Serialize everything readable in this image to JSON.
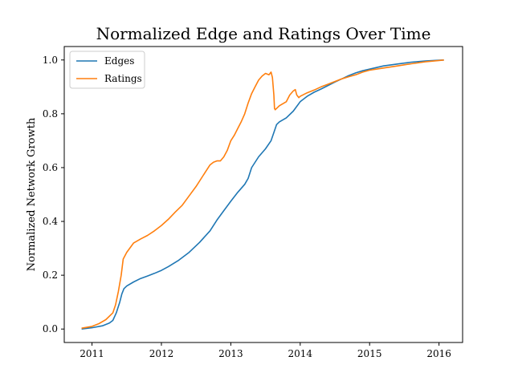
{
  "chart_data": {
    "type": "line",
    "title": "Normalized Edge and Ratings Over Time",
    "xlabel": "",
    "ylabel": "Normalized Network Growth",
    "xlim": [
      2010.6,
      2016.34
    ],
    "ylim": [
      -0.05,
      1.05
    ],
    "xticks": [
      2011,
      2012,
      2013,
      2014,
      2015,
      2016
    ],
    "yticks": [
      0.0,
      0.2,
      0.4,
      0.6,
      0.8,
      1.0
    ],
    "xtick_labels": [
      "2011",
      "2012",
      "2013",
      "2014",
      "2015",
      "2016"
    ],
    "ytick_labels": [
      "0.0",
      "0.2",
      "0.4",
      "0.6",
      "0.8",
      "1.0"
    ],
    "grid": false,
    "legend": "top-left",
    "series": [
      {
        "name": "Edges",
        "color": "#1f77b4",
        "x": [
          2010.85,
          2011.0,
          2011.15,
          2011.25,
          2011.3,
          2011.35,
          2011.4,
          2011.43,
          2011.46,
          2011.5,
          2011.6,
          2011.7,
          2011.8,
          2011.9,
          2012.0,
          2012.1,
          2012.25,
          2012.4,
          2012.55,
          2012.7,
          2012.8,
          2012.9,
          2013.0,
          2013.1,
          2013.2,
          2013.25,
          2013.3,
          2013.4,
          2013.5,
          2013.58,
          2013.62,
          2013.66,
          2013.7,
          2013.8,
          2013.9,
          2014.0,
          2014.1,
          2014.2,
          2014.3,
          2014.4,
          2014.5,
          2014.6,
          2014.7,
          2014.8,
          2014.9,
          2015.0,
          2015.2,
          2015.4,
          2015.6,
          2015.8,
          2016.0,
          2016.07
        ],
        "y": [
          0.0,
          0.005,
          0.012,
          0.022,
          0.032,
          0.06,
          0.1,
          0.13,
          0.15,
          0.16,
          0.175,
          0.188,
          0.197,
          0.207,
          0.218,
          0.232,
          0.256,
          0.285,
          0.322,
          0.365,
          0.405,
          0.44,
          0.475,
          0.508,
          0.538,
          0.56,
          0.6,
          0.64,
          0.67,
          0.7,
          0.73,
          0.76,
          0.77,
          0.785,
          0.81,
          0.845,
          0.865,
          0.88,
          0.892,
          0.905,
          0.918,
          0.93,
          0.942,
          0.952,
          0.96,
          0.966,
          0.978,
          0.985,
          0.992,
          0.996,
          0.999,
          1.0
        ]
      },
      {
        "name": "Ratings",
        "color": "#ff7f0e",
        "x": [
          2010.85,
          2011.0,
          2011.1,
          2011.2,
          2011.3,
          2011.34,
          2011.38,
          2011.42,
          2011.45,
          2011.5,
          2011.6,
          2011.7,
          2011.8,
          2011.9,
          2012.0,
          2012.1,
          2012.2,
          2012.3,
          2012.4,
          2012.5,
          2012.6,
          2012.7,
          2012.75,
          2012.8,
          2012.85,
          2012.9,
          2012.95,
          2013.0,
          2013.05,
          2013.1,
          2013.15,
          2013.2,
          2013.25,
          2013.3,
          2013.35,
          2013.4,
          2013.45,
          2013.5,
          2013.55,
          2013.58,
          2013.6,
          2013.62,
          2013.63,
          2013.64,
          2013.7,
          2013.8,
          2013.85,
          2013.9,
          2013.93,
          2013.95,
          2013.98,
          2014.0,
          2014.1,
          2014.2,
          2014.3,
          2014.4,
          2014.5,
          2014.6,
          2014.7,
          2014.8,
          2014.9,
          2015.0,
          2015.2,
          2015.4,
          2015.6,
          2015.8,
          2016.0,
          2016.07
        ],
        "y": [
          0.003,
          0.01,
          0.02,
          0.035,
          0.06,
          0.09,
          0.14,
          0.2,
          0.26,
          0.285,
          0.32,
          0.335,
          0.348,
          0.365,
          0.385,
          0.408,
          0.435,
          0.46,
          0.495,
          0.53,
          0.57,
          0.61,
          0.62,
          0.625,
          0.625,
          0.64,
          0.665,
          0.7,
          0.72,
          0.745,
          0.77,
          0.8,
          0.84,
          0.875,
          0.9,
          0.925,
          0.94,
          0.95,
          0.945,
          0.955,
          0.935,
          0.87,
          0.82,
          0.815,
          0.83,
          0.845,
          0.87,
          0.885,
          0.89,
          0.87,
          0.86,
          0.865,
          0.878,
          0.888,
          0.9,
          0.91,
          0.92,
          0.93,
          0.938,
          0.945,
          0.955,
          0.962,
          0.97,
          0.978,
          0.986,
          0.993,
          0.998,
          1.0
        ]
      }
    ]
  }
}
